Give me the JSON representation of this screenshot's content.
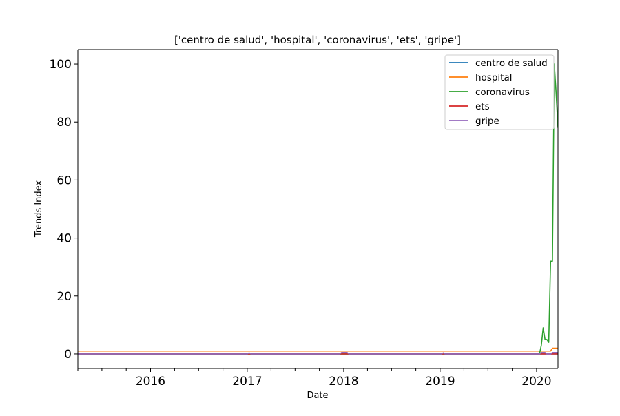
{
  "chart_data": {
    "type": "line",
    "title": "['centro de salud', 'hospital', 'coronavirus', 'ets', 'gripe']",
    "xlabel": "Date",
    "ylabel": "Trends Index",
    "x_range": [
      "2015-04-01",
      "2020-03-22"
    ],
    "xlim": [
      "2015-04-01",
      "2020-03-22"
    ],
    "ylim": [
      -5,
      105
    ],
    "x_ticks": [
      "2016",
      "2017",
      "2018",
      "2019",
      "2020"
    ],
    "y_ticks": [
      0,
      20,
      40,
      60,
      80,
      100
    ],
    "grid": false,
    "legend_position": "top-right",
    "series": [
      {
        "name": "centro de salud",
        "color": "#1f77b4",
        "points": [
          {
            "x": "2015-04-01",
            "y": 0
          },
          {
            "x": "2020-03-22",
            "y": 0
          }
        ]
      },
      {
        "name": "hospital",
        "color": "#ff7f0e",
        "points": [
          {
            "x": "2015-04-01",
            "y": 1
          },
          {
            "x": "2020-02-23",
            "y": 1
          },
          {
            "x": "2020-03-01",
            "y": 2
          },
          {
            "x": "2020-03-22",
            "y": 2
          }
        ]
      },
      {
        "name": "coronavirus",
        "color": "#2ca02c",
        "points": [
          {
            "x": "2015-04-01",
            "y": 0
          },
          {
            "x": "2020-01-12",
            "y": 0
          },
          {
            "x": "2020-01-19",
            "y": 3
          },
          {
            "x": "2020-01-26",
            "y": 9
          },
          {
            "x": "2020-02-02",
            "y": 5
          },
          {
            "x": "2020-02-09",
            "y": 5
          },
          {
            "x": "2020-02-16",
            "y": 4
          },
          {
            "x": "2020-02-23",
            "y": 32
          },
          {
            "x": "2020-03-01",
            "y": 32
          },
          {
            "x": "2020-03-08",
            "y": 100
          },
          {
            "x": "2020-03-15",
            "y": 90
          },
          {
            "x": "2020-03-22",
            "y": 78
          }
        ]
      },
      {
        "name": "ets",
        "color": "#d62728",
        "points": [
          {
            "x": "2015-04-01",
            "y": 0
          },
          {
            "x": "2020-03-22",
            "y": 0
          }
        ]
      },
      {
        "name": "gripe",
        "color": "#9467bd",
        "points": [
          {
            "x": "2015-04-01",
            "y": 0
          },
          {
            "x": "2017-01-01",
            "y": 0
          },
          {
            "x": "2017-01-08",
            "y": 0.4
          },
          {
            "x": "2017-01-15",
            "y": 0
          },
          {
            "x": "2017-12-17",
            "y": 0
          },
          {
            "x": "2017-12-24",
            "y": 0.5
          },
          {
            "x": "2018-01-14",
            "y": 0.5
          },
          {
            "x": "2018-01-21",
            "y": 0
          },
          {
            "x": "2019-01-06",
            "y": 0
          },
          {
            "x": "2019-01-13",
            "y": 0.4
          },
          {
            "x": "2019-01-20",
            "y": 0
          },
          {
            "x": "2020-01-12",
            "y": 0
          },
          {
            "x": "2020-01-19",
            "y": 0.5
          },
          {
            "x": "2020-02-02",
            "y": 0.5
          },
          {
            "x": "2020-02-09",
            "y": 0
          },
          {
            "x": "2020-02-23",
            "y": 0
          },
          {
            "x": "2020-03-01",
            "y": 0.5
          },
          {
            "x": "2020-03-22",
            "y": 0.5
          }
        ]
      }
    ]
  }
}
